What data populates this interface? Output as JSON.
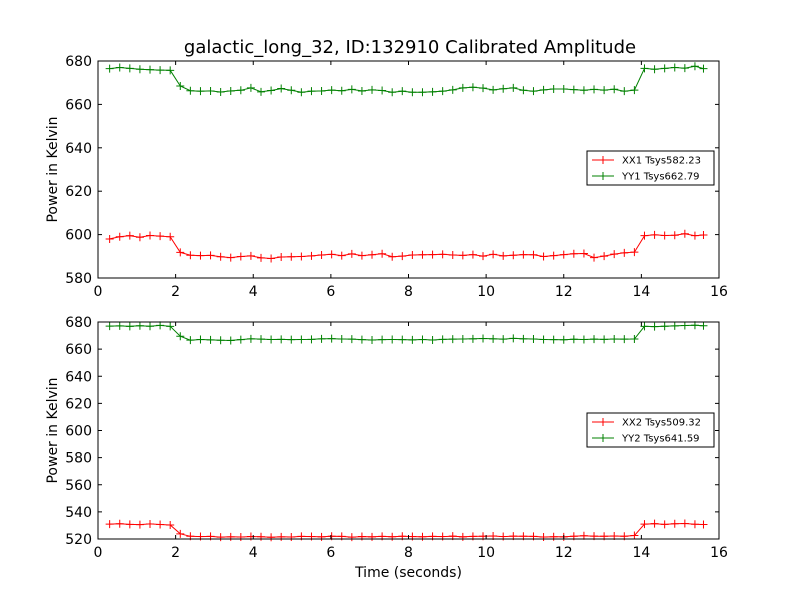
{
  "title": "galactic_long_32, ID:132910 Calibrated Amplitude",
  "chart_data": [
    {
      "type": "line",
      "ylabel": "Power in Kelvin",
      "xlabel": "",
      "xlim": [
        0,
        16
      ],
      "ylim": [
        580,
        680
      ],
      "xticks": [
        0,
        2,
        4,
        6,
        8,
        10,
        12,
        14,
        16
      ],
      "yticks": [
        580,
        600,
        620,
        640,
        660,
        680
      ],
      "legend": "center-right",
      "x": [
        0.3,
        0.56,
        0.82,
        1.08,
        1.34,
        1.6,
        1.86,
        2.12,
        2.38,
        2.64,
        2.9,
        3.16,
        3.42,
        3.68,
        3.94,
        4.2,
        4.46,
        4.72,
        4.98,
        5.24,
        5.5,
        5.76,
        6.02,
        6.28,
        6.54,
        6.8,
        7.06,
        7.32,
        7.58,
        7.84,
        8.1,
        8.36,
        8.62,
        8.88,
        9.14,
        9.4,
        9.66,
        9.92,
        10.18,
        10.44,
        10.7,
        10.96,
        11.22,
        11.48,
        11.74,
        12.0,
        12.26,
        12.52,
        12.78,
        13.04,
        13.3,
        13.56,
        13.82,
        14.08,
        14.34,
        14.6,
        14.86,
        15.12,
        15.38,
        15.6
      ],
      "series": [
        {
          "name": "XX1 Tsys582.23",
          "color": "#ff0000",
          "values": [
            598.0,
            599.0,
            599.5,
            598.8,
            599.6,
            599.3,
            599.0,
            591.8,
            590.5,
            590.3,
            590.4,
            589.8,
            589.4,
            589.9,
            590.2,
            589.3,
            589.0,
            589.7,
            589.8,
            589.9,
            590.2,
            590.6,
            590.9,
            590.3,
            591.1,
            590.3,
            590.7,
            591.2,
            589.8,
            590.1,
            590.6,
            590.7,
            590.8,
            590.9,
            590.6,
            590.4,
            590.8,
            590.1,
            590.9,
            590.2,
            590.5,
            590.8,
            590.7,
            589.9,
            590.3,
            590.8,
            591.2,
            591.3,
            589.4,
            590.1,
            591.0,
            591.6,
            591.9,
            599.5,
            599.9,
            599.6,
            599.7,
            600.4,
            599.5,
            599.8
          ]
        },
        {
          "name": "YY1 Tsys662.79",
          "color": "#008000",
          "values": [
            676.5,
            677.0,
            676.6,
            676.2,
            676.0,
            675.8,
            675.7,
            668.5,
            666.3,
            666.1,
            666.2,
            665.7,
            666.2,
            666.5,
            667.6,
            665.8,
            666.4,
            667.3,
            666.5,
            665.6,
            666.1,
            666.2,
            666.6,
            666.3,
            666.9,
            666.2,
            666.7,
            666.4,
            665.6,
            666.1,
            665.6,
            665.6,
            665.8,
            666.1,
            666.7,
            667.6,
            667.9,
            667.5,
            666.7,
            667.2,
            667.6,
            666.5,
            666.1,
            666.7,
            667.1,
            667.1,
            666.8,
            666.5,
            666.9,
            666.6,
            667.0,
            666.1,
            666.6,
            676.6,
            676.2,
            676.6,
            677.0,
            676.7,
            677.6,
            676.5
          ]
        }
      ]
    },
    {
      "type": "line",
      "ylabel": "Power in Kelvin",
      "xlabel": "Time (seconds)",
      "xlim": [
        0,
        16
      ],
      "ylim": [
        520,
        680
      ],
      "xticks": [
        0,
        2,
        4,
        6,
        8,
        10,
        12,
        14,
        16
      ],
      "yticks": [
        520,
        540,
        560,
        580,
        600,
        620,
        640,
        660,
        680
      ],
      "legend": "center-right",
      "x": [
        0.3,
        0.56,
        0.82,
        1.08,
        1.34,
        1.6,
        1.86,
        2.12,
        2.38,
        2.64,
        2.9,
        3.16,
        3.42,
        3.68,
        3.94,
        4.2,
        4.46,
        4.72,
        4.98,
        5.24,
        5.5,
        5.76,
        6.02,
        6.28,
        6.54,
        6.8,
        7.06,
        7.32,
        7.58,
        7.84,
        8.1,
        8.36,
        8.62,
        8.88,
        9.14,
        9.4,
        9.66,
        9.92,
        10.18,
        10.44,
        10.7,
        10.96,
        11.22,
        11.48,
        11.74,
        12.0,
        12.26,
        12.52,
        12.78,
        13.04,
        13.3,
        13.56,
        13.82,
        14.08,
        14.34,
        14.6,
        14.86,
        15.12,
        15.38,
        15.6
      ],
      "series": [
        {
          "name": "XX2 Tsys509.32",
          "color": "#ff0000",
          "values": [
            531.0,
            531.2,
            530.8,
            530.6,
            531.1,
            530.7,
            530.3,
            523.8,
            522.0,
            521.8,
            521.9,
            521.4,
            521.6,
            521.5,
            521.8,
            521.7,
            521.3,
            521.6,
            521.5,
            521.9,
            521.8,
            521.6,
            522.0,
            521.9,
            521.4,
            521.8,
            521.6,
            521.9,
            521.7,
            522.0,
            521.8,
            521.7,
            521.9,
            521.8,
            522.1,
            521.6,
            521.9,
            522.0,
            522.2,
            521.8,
            522.1,
            522.0,
            521.9,
            521.5,
            521.7,
            521.6,
            522.0,
            522.4,
            522.1,
            522.0,
            522.2,
            522.0,
            522.6,
            531.0,
            531.3,
            530.8,
            531.2,
            531.4,
            530.9,
            530.7
          ]
        },
        {
          "name": "YY2 Tsys641.59",
          "color": "#008000",
          "values": [
            677.0,
            677.1,
            676.8,
            677.2,
            676.9,
            677.5,
            676.8,
            669.5,
            666.6,
            667.1,
            666.8,
            666.5,
            666.4,
            667.0,
            667.6,
            667.4,
            667.1,
            667.2,
            667.0,
            667.1,
            667.2,
            667.6,
            667.7,
            667.5,
            667.4,
            667.0,
            666.7,
            667.0,
            667.1,
            667.0,
            666.8,
            667.1,
            666.7,
            667.2,
            667.4,
            667.5,
            667.6,
            667.8,
            667.6,
            667.4,
            667.9,
            667.6,
            667.5,
            667.1,
            667.0,
            666.9,
            667.3,
            667.1,
            667.4,
            667.2,
            667.5,
            667.4,
            667.5,
            676.8,
            676.6,
            676.9,
            677.1,
            677.4,
            677.6,
            677.2
          ]
        }
      ]
    }
  ]
}
